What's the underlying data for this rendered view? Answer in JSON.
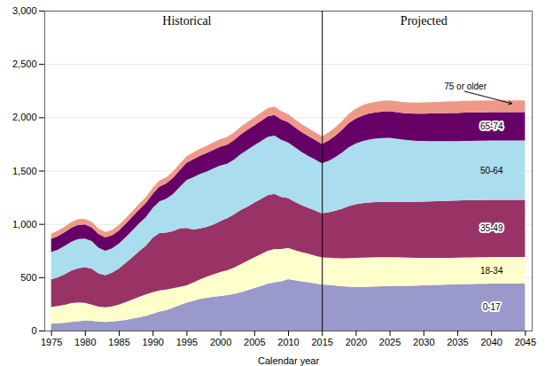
{
  "chart_data": {
    "type": "area",
    "stacked": true,
    "xlabel": "Calendar year",
    "xlim": [
      1974,
      2046
    ],
    "xticks": [
      1975,
      1980,
      1985,
      1990,
      1995,
      2000,
      2005,
      2010,
      2015,
      2020,
      2025,
      2030,
      2035,
      2040,
      2045
    ],
    "ylim": [
      0,
      3000
    ],
    "yticks": [
      0,
      500,
      {
        "value": 1000,
        "label": "1,000"
      },
      {
        "value": 1500,
        "label": "1,500"
      },
      {
        "value": 2000,
        "label": "2,000"
      },
      {
        "value": 2500,
        "label": "2,500"
      },
      {
        "value": 3000,
        "label": "3,000"
      }
    ],
    "grid": true,
    "segments": [
      {
        "name": "Historical",
        "x": [
          1975,
          1976,
          1977,
          1978,
          1979,
          1980,
          1981,
          1982,
          1983,
          1984,
          1985,
          1986,
          1987,
          1988,
          1989,
          1990,
          1991,
          1992,
          1993,
          1994,
          1995,
          1996,
          1997,
          1998,
          1999,
          2000,
          2001,
          2002,
          2003,
          2004,
          2005,
          2006,
          2007,
          2008,
          2009,
          2010,
          2011,
          2012,
          2013,
          2014,
          2015
        ],
        "series": [
          {
            "name": "0-17",
            "color": "#9999cc",
            "values": [
              65,
              68,
              72,
              80,
              88,
              95,
              92,
              85,
              80,
              85,
              92,
              100,
              112,
              125,
              138,
              158,
              178,
              192,
              215,
              238,
              262,
              278,
              298,
              308,
              318,
              325,
              332,
              342,
              360,
              378,
              398,
              418,
              440,
              452,
              462,
              482,
              472,
              462,
              452,
              442,
              432
            ]
          },
          {
            "name": "18-34",
            "color": "#ffffcc",
            "values": [
              155,
              162,
              170,
              178,
              175,
              165,
              152,
              140,
              138,
              142,
              152,
              165,
              178,
              190,
              200,
              202,
              198,
              192,
              182,
              172,
              162,
              172,
              182,
              196,
              210,
              224,
              234,
              248,
              262,
              276,
              288,
              298,
              308,
              312,
              302,
              292,
              282,
              274,
              268,
              260,
              254
            ]
          },
          {
            "name": "35-49",
            "color": "#993366",
            "values": [
              260,
              268,
              285,
              305,
              320,
              335,
              335,
              312,
              302,
              315,
              338,
              368,
              398,
              428,
              458,
              510,
              538,
              535,
              535,
              548,
              538,
              498,
              478,
              468,
              468,
              478,
              488,
              498,
              508,
              508,
              512,
              518,
              522,
              518,
              488,
              468,
              454,
              440,
              430,
              424,
              414
            ]
          },
          {
            "name": "50-64",
            "color": "#aaddee",
            "values": [
              255,
              260,
              266,
              270,
              275,
              268,
              260,
              240,
              228,
              228,
              232,
              242,
              252,
              262,
              268,
              278,
              298,
              318,
              348,
              388,
              448,
              490,
              510,
              520,
              524,
              520,
              510,
              514,
              524,
              534,
              538,
              542,
              546,
              546,
              536,
              522,
              512,
              498,
              488,
              478,
              468
            ]
          },
          {
            "name": "65-74",
            "color": "#660066",
            "values": [
              125,
              128,
              130,
              132,
              134,
              132,
              130,
              128,
              126,
              124,
              124,
              126,
              128,
              130,
              132,
              134,
              138,
              142,
              152,
              158,
              162,
              168,
              172,
              174,
              176,
              178,
              180,
              182,
              184,
              186,
              188,
              190,
              192,
              194,
              192,
              190,
              188,
              188,
              186,
              184,
              182
            ]
          },
          {
            "name": "75 or older",
            "color": "#ee9988",
            "values": [
              48,
              50,
              51,
              52,
              53,
              52,
              52,
              51,
              50,
              50,
              50,
              51,
              52,
              53,
              54,
              55,
              56,
              57,
              59,
              61,
              62,
              64,
              65,
              67,
              69,
              70,
              71,
              72,
              73,
              74,
              75,
              76,
              77,
              78,
              77,
              76,
              75,
              74,
              73,
              72,
              71
            ]
          }
        ]
      },
      {
        "name": "Projected",
        "x": [
          2015,
          2016,
          2017,
          2018,
          2019,
          2020,
          2021,
          2022,
          2023,
          2024,
          2025,
          2026,
          2027,
          2028,
          2029,
          2030,
          2031,
          2032,
          2033,
          2034,
          2035,
          2036,
          2037,
          2038,
          2039,
          2040,
          2041,
          2042,
          2043,
          2044,
          2045
        ],
        "series": [
          {
            "name": "0-17",
            "color": "#9999cc",
            "values": [
              432,
              428,
              422,
              416,
              412,
              410,
              410,
              412,
              414,
              416,
              418,
              420,
              420,
              420,
              422,
              424,
              426,
              428,
              430,
              432,
              434,
              436,
              436,
              438,
              438,
              440,
              440,
              440,
              440,
              440,
              440
            ]
          },
          {
            "name": "18-34",
            "color": "#ffffcc",
            "values": [
              254,
              256,
              258,
              262,
              268,
              272,
              274,
              274,
              274,
              272,
              270,
              268,
              265,
              263,
              260,
              258,
              256,
              254,
              252,
              250,
              250,
              250,
              250,
              250,
              250,
              250,
              250,
              250,
              250,
              250,
              250
            ]
          },
          {
            "name": "35-49",
            "color": "#993366",
            "values": [
              414,
              425,
              445,
              465,
              488,
              502,
              510,
              515,
              518,
              520,
              520,
              520,
              521,
              523,
              525,
              528,
              530,
              532,
              534,
              535,
              535,
              535,
              535,
              535,
              535,
              535,
              535,
              535,
              535,
              535,
              535
            ]
          },
          {
            "name": "50-64",
            "color": "#aaddee",
            "values": [
              468,
              482,
              502,
              528,
              552,
              570,
              582,
              590,
              595,
              598,
              600,
              592,
              584,
              578,
              572,
              568,
              565,
              563,
              561,
              560,
              558,
              558,
              558,
              558,
              558,
              558,
              558,
              558,
              558,
              558,
              558
            ]
          },
          {
            "name": "65-74",
            "color": "#660066",
            "values": [
              182,
              192,
              202,
              214,
              226,
              234,
              240,
              244,
              246,
              248,
              248,
              248,
              250,
              252,
              254,
              256,
              258,
              260,
              262,
              264,
              264,
              265,
              265,
              265,
              265,
              265,
              265,
              265,
              265,
              265,
              265
            ]
          },
          {
            "name": "75 or older",
            "color": "#ee9988",
            "values": [
              71,
              74,
              78,
              83,
              88,
              92,
              96,
              98,
              100,
              101,
              102,
              103,
              103,
              104,
              104,
              105,
              106,
              107,
              108,
              109,
              110,
              110,
              110,
              110,
              110,
              110,
              110,
              110,
              110,
              110,
              110
            ]
          }
        ]
      }
    ]
  }
}
